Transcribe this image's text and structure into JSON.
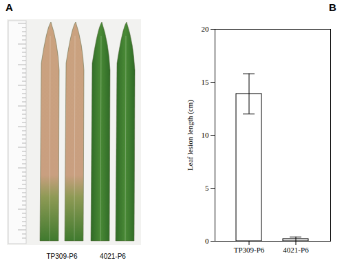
{
  "photo": {
    "label": "A",
    "captions": [
      "TP309-P6",
      "4021-P6"
    ]
  },
  "chart_data": {
    "type": "bar",
    "panel_label": "B",
    "ylabel": "Leaf lesion length (cm)",
    "categories": [
      "TP309-P6",
      "4021-P6"
    ],
    "values": [
      13.9,
      0.2
    ],
    "errors": [
      1.9,
      0.2
    ],
    "color": "#ffffff",
    "ylim": [
      0,
      20
    ],
    "yticks": [
      0,
      5,
      10,
      15,
      20
    ]
  }
}
